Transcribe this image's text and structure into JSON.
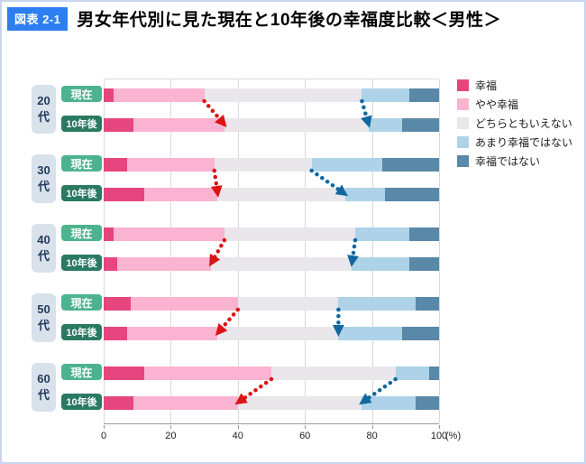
{
  "header": {
    "badge": "図表 2-1",
    "title": "男女年代別に見た現在と10年後の幸福度比較＜男性＞"
  },
  "chart_data": {
    "type": "bar",
    "orientation": "horizontal",
    "stacked": true,
    "title": "男女年代別に見た現在と10年後の幸福度比較＜男性＞",
    "xlabel": "(%)",
    "unit": "(%)",
    "xlim": [
      0,
      100
    ],
    "x_ticks": [
      0,
      20,
      40,
      60,
      80,
      100
    ],
    "grid": true,
    "legend_position": "right",
    "series_labels": [
      "幸福",
      "やや幸福",
      "どちらともいえない",
      "あまり幸福ではない",
      "幸福ではない"
    ],
    "series_colors": [
      "#e7457e",
      "#fab3d1",
      "#e9e7eb",
      "#aed3e8",
      "#5988a8"
    ],
    "row_labels": {
      "now": "現在",
      "future": "10年後"
    },
    "groups": [
      {
        "age": "20代",
        "now": [
          3,
          27,
          47,
          14,
          9
        ],
        "future": [
          9,
          27,
          43,
          10,
          11
        ]
      },
      {
        "age": "30代",
        "now": [
          7,
          26,
          29,
          21,
          17
        ],
        "future": [
          12,
          22,
          38,
          12,
          16
        ]
      },
      {
        "age": "40代",
        "now": [
          3,
          33,
          39,
          16,
          9
        ],
        "future": [
          4,
          28,
          42,
          17,
          9
        ]
      },
      {
        "age": "50代",
        "now": [
          8,
          32,
          30,
          23,
          7
        ],
        "future": [
          7,
          27,
          36,
          19,
          11
        ]
      },
      {
        "age": "60代",
        "now": [
          12,
          38,
          37,
          10,
          3
        ],
        "future": [
          9,
          31,
          37,
          16,
          7
        ]
      }
    ],
    "arrows": {
      "red": {
        "color": "#dc1414",
        "boundary_after_series": 2,
        "meaning": "幸福＋やや幸福の境界の変化（現在→10年後）"
      },
      "blue": {
        "color": "#11689f",
        "boundary_after_series": 3,
        "meaning": "どちらともいえない／あまり幸福ではないの境界の変化（現在→10年後）"
      }
    }
  },
  "colors": {
    "badge_bg": "#2d7ff0",
    "page_border": "#c9d4ee",
    "age_pill_bg": "#d9e2eb",
    "age_pill_text": "#23395d",
    "now_button_bg": "#4db38f",
    "future_button_bg": "#2a7a62",
    "gridline": "#d9d9d9",
    "axis": "#9a9a9a"
  }
}
